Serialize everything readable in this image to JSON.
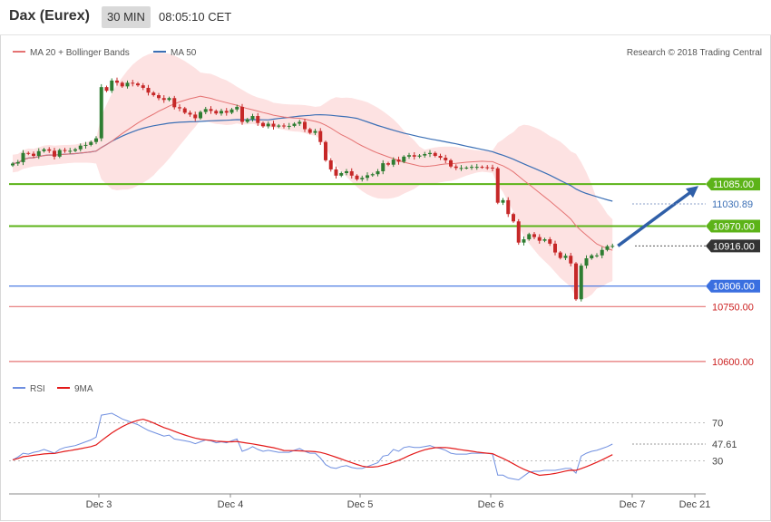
{
  "header": {
    "symbol": "Dax (Eurex)",
    "timeframe": "30 MIN",
    "time": "08:05:10 CET"
  },
  "legend": {
    "ma20_label": "MA 20 + Bollinger Bands",
    "ma50_label": "MA 50",
    "copyright": "Research © 2018 Trading Central",
    "rsi_label": "RSI",
    "rsi_ma_label": "9MA"
  },
  "colors": {
    "bull": "#2e7d32",
    "bear": "#c62828",
    "ma20": "#e57373",
    "band_fill": "#fde2e2",
    "ma50": "#3b6fb5",
    "resistance": "#5cb318",
    "support": "#3a6fe0",
    "support2": "#e57373",
    "rsi": "#6f8fe0",
    "rsi_ma": "#e31a1a",
    "arrow": "#2f5fa8",
    "last": "#333333"
  },
  "chart_data": {
    "type": "candlestick",
    "price_ylim": [
      10560,
      11390
    ],
    "x_labels": [
      "Dec 3",
      "Dec 4",
      "Dec 5",
      "Dec 6",
      "Dec 7",
      "Dec 21"
    ],
    "levels": [
      {
        "value": 11085.0,
        "label": "11085.00",
        "kind": "resistance"
      },
      {
        "value": 10970.0,
        "label": "10970.00",
        "kind": "resistance"
      },
      {
        "value": 10806.0,
        "label": "10806.00",
        "kind": "support"
      },
      {
        "value": 10750.0,
        "label": "10750.00",
        "kind": "support2"
      },
      {
        "value": 10600.0,
        "label": "10600.00",
        "kind": "support2"
      }
    ],
    "ma50_last": {
      "value": 11030.89,
      "label": "11030.89"
    },
    "last_price": {
      "value": 10916.0,
      "label": "10916.00"
    },
    "close": [
      11141,
      11145,
      11170,
      11168,
      11162,
      11175,
      11180,
      11176,
      11160,
      11178,
      11176,
      11176,
      11180,
      11190,
      11192,
      11200,
      11210,
      11350,
      11340,
      11368,
      11362,
      11352,
      11362,
      11360,
      11355,
      11348,
      11335,
      11328,
      11320,
      11315,
      11320,
      11295,
      11292,
      11280,
      11275,
      11265,
      11282,
      11290,
      11285,
      11278,
      11285,
      11280,
      11289,
      11296,
      11255,
      11262,
      11271,
      11252,
      11243,
      11250,
      11242,
      11245,
      11243,
      11244,
      11250,
      11255,
      11235,
      11225,
      11230,
      11200,
      11150,
      11125,
      11108,
      11115,
      11120,
      11108,
      11098,
      11102,
      11109,
      11112,
      11120,
      11142,
      11138,
      11152,
      11146,
      11160,
      11164,
      11160,
      11163,
      11167,
      11170,
      11162,
      11157,
      11150,
      11133,
      11129,
      11129,
      11130,
      11132,
      11132,
      11131,
      11130,
      11128,
      11034,
      11041,
      11003,
      10983,
      10925,
      10934,
      10948,
      10940,
      10930,
      10934,
      10922,
      10898,
      10883,
      10889,
      10868,
      10770,
      10862,
      10882,
      10890,
      10890,
      10905,
      10915,
      10916
    ],
    "rsi": [
      31,
      34,
      38,
      37,
      39,
      40,
      42,
      40,
      38,
      42,
      44,
      45,
      46,
      48,
      50,
      52,
      55,
      78,
      79,
      80,
      77,
      74,
      72,
      70,
      68,
      65,
      62,
      60,
      58,
      56,
      57,
      53,
      52,
      51,
      50,
      48,
      50,
      52,
      51,
      49,
      50,
      49,
      51,
      53,
      40,
      42,
      45,
      42,
      40,
      41,
      40,
      39,
      39,
      39,
      41,
      43,
      40,
      38,
      38,
      33,
      26,
      23,
      22,
      24,
      25,
      23,
      22,
      22,
      24,
      26,
      28,
      35,
      36,
      42,
      40,
      44,
      45,
      44,
      44,
      45,
      46,
      44,
      43,
      41,
      38,
      37,
      37,
      37,
      38,
      38,
      38,
      38,
      37,
      15,
      15,
      12,
      11,
      10,
      14,
      18,
      19,
      19,
      20,
      20,
      20,
      21,
      22,
      22,
      17,
      35,
      38,
      40,
      41,
      43,
      45,
      47.61
    ],
    "rsi_last": {
      "value": 47.61,
      "label": "47.61"
    },
    "rsi_ticks": [
      "70",
      "30"
    ],
    "rsi_ylim": [
      0,
      100
    ]
  }
}
